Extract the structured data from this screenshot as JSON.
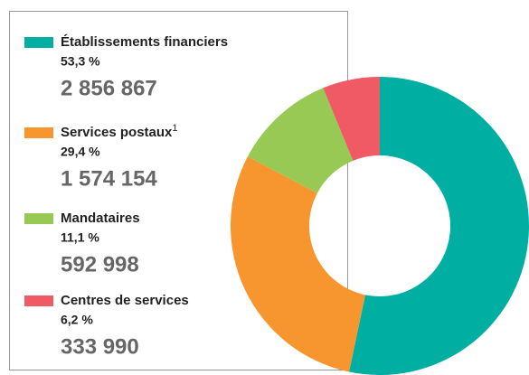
{
  "chart_data": {
    "type": "donut",
    "categories": [
      "Établissements financiers",
      "Services postaux",
      "Mandataires",
      "Centres de services"
    ],
    "superscripts": [
      null,
      "1",
      null,
      null
    ],
    "values": [
      53.3,
      29.4,
      11.1,
      6.2
    ],
    "value_labels": [
      "53,3 %",
      "29,4 %",
      "11,1 %",
      "6,2 %"
    ],
    "counts": [
      {
        "value": 2856867,
        "label": "2 856 867"
      },
      {
        "value": 1574154,
        "label": "1 574 154"
      },
      {
        "value": 592998,
        "label": "592 998"
      },
      {
        "value": 333990,
        "label": "333 990"
      }
    ],
    "colors": [
      "#00aea2",
      "#f7962f",
      "#98c955",
      "#ef5a65"
    ]
  }
}
